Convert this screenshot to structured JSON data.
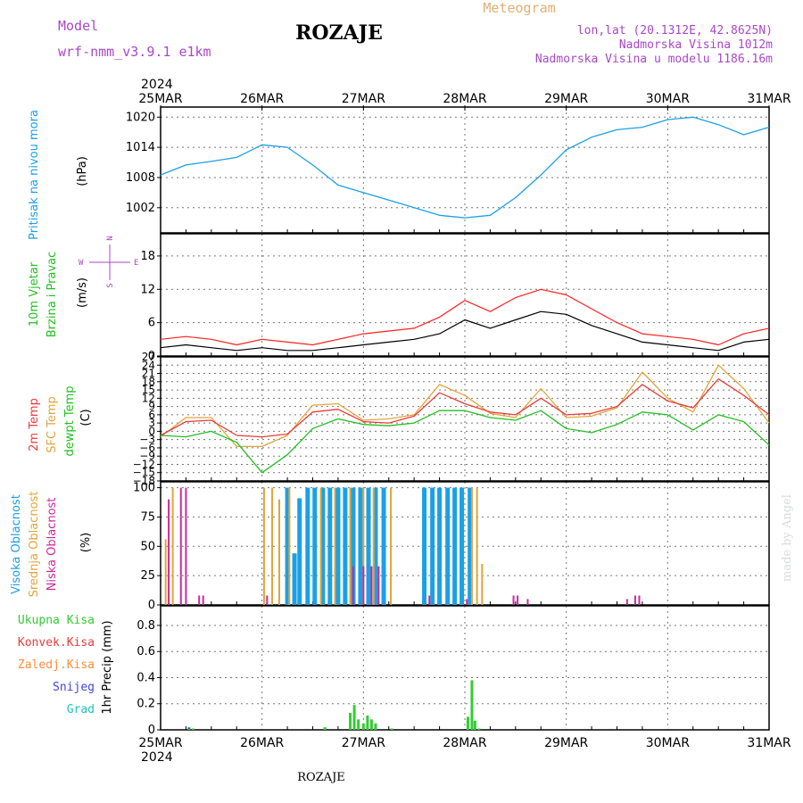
{
  "header": {
    "model_label": "Model",
    "model_name": "wrf-nmm_v3.9.1 e1km",
    "station": "ROZAJE",
    "product": "Meteogram",
    "coords": "lon,lat (20.1312E, 42.8625N)",
    "elevation": "Nadmorska Visina 1012m",
    "model_elevation": "Nadmorska Visina u modelu 1186.16m"
  },
  "footer": {
    "station": "ROZAJE",
    "credit": "made by Angel"
  },
  "colors": {
    "pressure": "#1ba0e6",
    "t2m": "#e83c3c",
    "sfc": "#e0a53c",
    "dewpt": "#22c022",
    "high_cloud": "#1ba0e6",
    "mid_cloud": "#e0a53c",
    "low_cloud": "#cc2a9c",
    "total_precip": "#33cc33",
    "conv_precip": "#e83c3c",
    "frozen_precip": "#ff8c3c",
    "snow": "#4444dd",
    "hail": "#22c0c0",
    "wind_speed": "#000000",
    "wind_gust": "#ff2020"
  },
  "chart_data": [
    {
      "type": "line",
      "id": "pressure",
      "title": "",
      "ylabel_main": "Pritisak na nivou mora",
      "ylabel_unit": "(hPa)",
      "ylim": [
        997,
        1022
      ],
      "yticks": [
        "1002",
        "1008",
        "1014",
        "1020"
      ],
      "ytick_values": [
        1002,
        1008,
        1014,
        1020
      ],
      "xlabels_top_year": "2024",
      "xlabels": [
        "25MAR",
        "26MAR",
        "27MAR",
        "28MAR",
        "29MAR",
        "30MAR",
        "31MAR"
      ],
      "x_days": [
        0,
        0.25,
        0.5,
        0.75,
        1,
        1.25,
        1.5,
        1.75,
        2,
        2.25,
        2.5,
        2.75,
        3,
        3.25,
        3.5,
        3.75,
        4,
        4.25,
        4.5,
        4.75,
        5,
        5.25,
        5.5,
        5.75,
        6
      ],
      "series": [
        {
          "values": [
            1008.5,
            1010.5,
            1011.2,
            1012.0,
            1014.5,
            1014.0,
            1010.5,
            1006.5,
            1005.0,
            1003.5,
            1002.0,
            1000.5,
            1000.0,
            1000.5,
            1004.0,
            1008.5,
            1013.5,
            1016.0,
            1017.5,
            1018.0,
            1019.5,
            1020.0,
            1018.5,
            1016.5,
            1018.0
          ]
        }
      ]
    },
    {
      "type": "line",
      "id": "wind",
      "title": "",
      "ylabel_main": "10m Vjetar",
      "ylabel_sub": "Brzina i Pravac",
      "ylabel_unit": "(m/s)",
      "compass": {
        "n": "N",
        "s": "S",
        "e": "E",
        "w": "W"
      },
      "ylim": [
        0,
        22
      ],
      "yticks": [
        "0",
        "6",
        "12",
        "18"
      ],
      "ytick_values": [
        0,
        6,
        12,
        18
      ],
      "x_days": [
        0,
        0.25,
        0.5,
        0.75,
        1,
        1.25,
        1.5,
        1.75,
        2,
        2.25,
        2.5,
        2.75,
        3,
        3.25,
        3.5,
        3.75,
        4,
        4.25,
        4.5,
        4.75,
        5,
        5.25,
        5.5,
        5.75,
        6
      ],
      "series": [
        {
          "values": [
            1.5,
            2.0,
            1.5,
            1.0,
            1.5,
            1.0,
            1.0,
            1.5,
            2.0,
            2.5,
            3.0,
            4.0,
            6.5,
            5.0,
            6.5,
            8.0,
            7.5,
            5.5,
            4.0,
            2.5,
            2.0,
            1.5,
            1.0,
            2.5,
            3.0
          ]
        },
        {
          "values": [
            3.0,
            3.5,
            3.0,
            2.0,
            3.0,
            2.5,
            2.0,
            3.0,
            4.0,
            4.5,
            5.0,
            7.0,
            10.0,
            8.0,
            10.5,
            12.0,
            11.0,
            8.5,
            6.0,
            4.0,
            3.5,
            3.0,
            2.0,
            4.0,
            5.0
          ]
        }
      ]
    },
    {
      "type": "line",
      "id": "temperature",
      "title": "",
      "ylabel_t2m": "2m Temp",
      "ylabel_sfc": "SFC Temp",
      "ylabel_dew": "dewpt Temp",
      "ylabel_unit": "(C)",
      "ylim": [
        -18,
        27
      ],
      "yticks": [
        "−18",
        "−15",
        "−12",
        "−9",
        "−6",
        "−3",
        "0",
        "3",
        "6",
        "9",
        "12",
        "15",
        "18",
        "21",
        "24",
        "27"
      ],
      "ytick_values": [
        -18,
        -15,
        -12,
        -9,
        -6,
        -3,
        0,
        3,
        6,
        9,
        12,
        15,
        18,
        21,
        24,
        27
      ],
      "x_days": [
        0,
        0.25,
        0.5,
        0.75,
        1,
        1.25,
        1.5,
        1.75,
        2,
        2.25,
        2.5,
        2.75,
        3,
        3.25,
        3.5,
        3.75,
        4,
        4.25,
        4.5,
        4.75,
        5,
        5.25,
        5.5,
        5.75,
        6
      ],
      "series": [
        {
          "values": [
            -1.5,
            3.5,
            4.0,
            -1.5,
            -2.0,
            -1.0,
            7.0,
            8.0,
            3.5,
            3.0,
            5.5,
            14.0,
            10.0,
            7.0,
            6.0,
            12.0,
            6.0,
            6.5,
            9.0,
            17.0,
            11.0,
            8.5,
            19.0,
            13.0,
            6.0
          ]
        },
        {
          "values": [
            -2.0,
            5.0,
            5.0,
            -5.5,
            -5.5,
            -1.5,
            9.5,
            10.0,
            4.0,
            4.5,
            6.0,
            17.0,
            13.0,
            6.5,
            5.0,
            15.5,
            5.0,
            5.5,
            8.5,
            21.5,
            12.0,
            7.0,
            24.0,
            15.5,
            3.0
          ]
        },
        {
          "values": [
            -1.5,
            -2.0,
            0.0,
            -4.0,
            -15.0,
            -8.5,
            1.0,
            4.5,
            2.5,
            2.0,
            3.0,
            7.5,
            7.5,
            5.0,
            4.0,
            7.5,
            1.0,
            -0.5,
            2.5,
            7.0,
            6.0,
            0.5,
            6.0,
            3.5,
            -5.0
          ]
        }
      ]
    },
    {
      "type": "bar",
      "id": "cloud",
      "title": "",
      "ylabel_high": "Visoka Oblacnost",
      "ylabel_mid": "Srednja Oblacnost",
      "ylabel_low": "Niska Oblacnost",
      "ylabel_unit": "(%)",
      "ylim": [
        0,
        105
      ],
      "yticks": [
        "0",
        "25",
        "50",
        "75",
        "100"
      ],
      "ytick_values": [
        0,
        25,
        50,
        75,
        100
      ],
      "series": [
        {
          "name": "Visoka Oblacnost",
          "x_days": [
            1.07,
            1.25,
            1.32,
            1.37,
            1.45,
            1.52,
            1.6,
            1.67,
            1.75,
            1.82,
            1.9,
            1.97,
            2.05,
            2.12,
            2.2,
            2.6,
            2.68,
            2.75,
            2.83,
            2.9,
            2.97,
            3.05
          ],
          "values": [
            0.5,
            100,
            44,
            91,
            100,
            100,
            100,
            100,
            100,
            100,
            100,
            100,
            100,
            100,
            100,
            100,
            100,
            100,
            100,
            100,
            100,
            100
          ]
        },
        {
          "name": "Srednja Oblacnost",
          "x_days": [
            0.05,
            0.12,
            1.02,
            1.1,
            1.17,
            1.27,
            1.58,
            1.72,
            1.87,
            2.0,
            2.1,
            2.27,
            3.07,
            3.12,
            3.17
          ],
          "values": [
            56,
            100,
            100,
            100,
            90,
            100,
            100,
            100,
            100,
            100,
            100,
            100,
            100,
            100,
            35
          ]
        },
        {
          "name": "Niska Oblacnost",
          "x_days": [
            0.08,
            0.2,
            0.25,
            0.38,
            0.42,
            1.05,
            1.9,
            2.0,
            2.08,
            2.15,
            2.65,
            3.02,
            3.48,
            3.52,
            3.62,
            4.6,
            4.68,
            4.72
          ],
          "values": [
            90,
            100,
            100,
            8,
            8,
            8,
            33,
            33,
            33,
            33,
            8,
            5,
            8,
            8,
            5,
            5,
            8,
            8
          ]
        }
      ]
    },
    {
      "type": "bar",
      "id": "precip",
      "title": "",
      "ylabel_main": "1hr Precip (mm)",
      "legend": [
        "Ukupna Kisa",
        "Konvek.Kisa",
        "Zaledj.Kisa",
        "Snijeg",
        "Grad"
      ],
      "ylim": [
        0,
        0.95
      ],
      "yticks": [
        "0",
        "0.2",
        "0.4",
        "0.6",
        "0.8"
      ],
      "ytick_values": [
        0,
        0.2,
        0.4,
        0.6,
        0.8
      ],
      "xlabels_bottom_year": "2024",
      "series": [
        {
          "name": "Ukupna Kisa",
          "x_days": [
            0.28,
            0.32,
            1.62,
            1.87,
            1.91,
            1.95,
            2.0,
            2.04,
            2.08,
            2.12,
            2.28,
            3.03,
            3.07,
            3.1,
            3.14
          ],
          "values": [
            0.02,
            0.01,
            0.02,
            0.13,
            0.19,
            0.08,
            0.05,
            0.11,
            0.08,
            0.05,
            0.01,
            0.1,
            0.38,
            0.07,
            0.01
          ]
        },
        {
          "name": "Snijeg",
          "x_days": [
            0.28
          ],
          "values": [
            0.015
          ]
        },
        {
          "name": "Grad",
          "x_days": [
            0.28
          ],
          "values": [
            0.005
          ]
        }
      ]
    }
  ]
}
